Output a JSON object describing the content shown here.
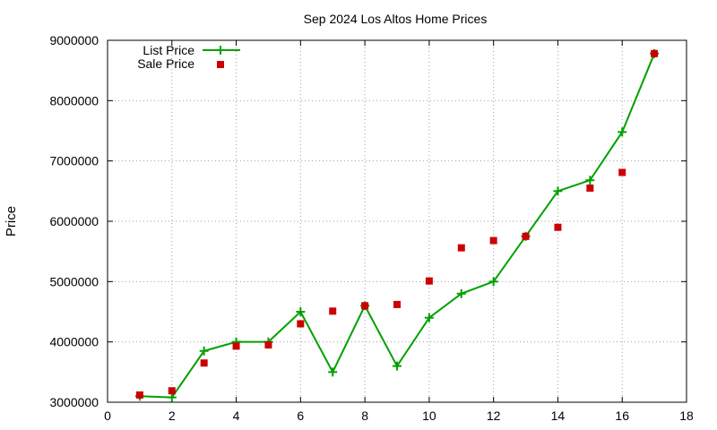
{
  "chart_data": {
    "type": "line",
    "title": "Sep 2024 Los Altos Home Prices",
    "xlabel": "",
    "ylabel": "Price",
    "xlim": [
      0,
      18
    ],
    "ylim": [
      3000000,
      9000000
    ],
    "x_ticks": [
      0,
      2,
      4,
      6,
      8,
      10,
      12,
      14,
      16,
      18
    ],
    "y_ticks": [
      3000000,
      4000000,
      5000000,
      6000000,
      7000000,
      8000000,
      9000000
    ],
    "x_tick_labels": [
      "0",
      "2",
      "4",
      "6",
      "8",
      "10",
      "12",
      "14",
      "16",
      "18"
    ],
    "y_tick_labels": [
      "3000000",
      "4000000",
      "5000000",
      "6000000",
      "7000000",
      "8000000",
      "9000000"
    ],
    "grid": true,
    "legend_position": "top-left",
    "series": [
      {
        "name": "List Price",
        "style": "line-with-plus-markers",
        "color": "#00a000",
        "x": [
          1,
          2,
          3,
          4,
          5,
          6,
          7,
          8,
          9,
          10,
          11,
          12,
          13,
          14,
          15,
          16,
          17
        ],
        "y": [
          3100000,
          3080000,
          3850000,
          4000000,
          4000000,
          4500000,
          3500000,
          4600000,
          3600000,
          4400000,
          4800000,
          5000000,
          5750000,
          6500000,
          6680000,
          7480000,
          8780000
        ]
      },
      {
        "name": "Sale Price",
        "style": "square-markers",
        "color": "#cc0000",
        "x": [
          1,
          2,
          3,
          4,
          5,
          6,
          7,
          8,
          9,
          10,
          11,
          12,
          13,
          14,
          15,
          16,
          17
        ],
        "y": [
          3120000,
          3190000,
          3650000,
          3930000,
          3950000,
          4300000,
          4510000,
          4600000,
          4620000,
          5010000,
          5560000,
          5680000,
          5750000,
          5900000,
          6550000,
          6810000,
          8780000
        ]
      }
    ]
  }
}
